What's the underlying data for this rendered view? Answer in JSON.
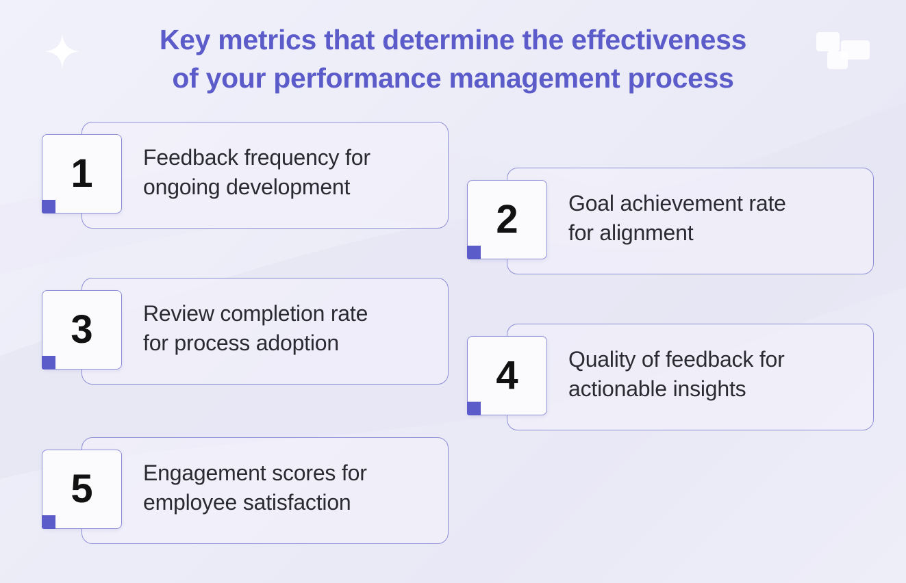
{
  "title": {
    "line1": "Key metrics that determine the effectiveness",
    "line2": "of your performance management process"
  },
  "decor": {
    "left_icon": "sparkle-icon",
    "right_icon": "blocks-icon"
  },
  "colors": {
    "accent": "#5b5bc9",
    "border": "#8e8ed6",
    "text": "#2a2a33"
  },
  "metrics": [
    {
      "number": "1",
      "line1": "Feedback frequency for",
      "line2": "ongoing development"
    },
    {
      "number": "2",
      "line1": "Goal achievement rate",
      "line2": "for alignment"
    },
    {
      "number": "3",
      "line1": "Review completion rate",
      "line2": "for process adoption"
    },
    {
      "number": "4",
      "line1": "Quality of feedback for",
      "line2": "actionable insights"
    },
    {
      "number": "5",
      "line1": "Engagement scores for",
      "line2": "employee satisfaction"
    }
  ]
}
